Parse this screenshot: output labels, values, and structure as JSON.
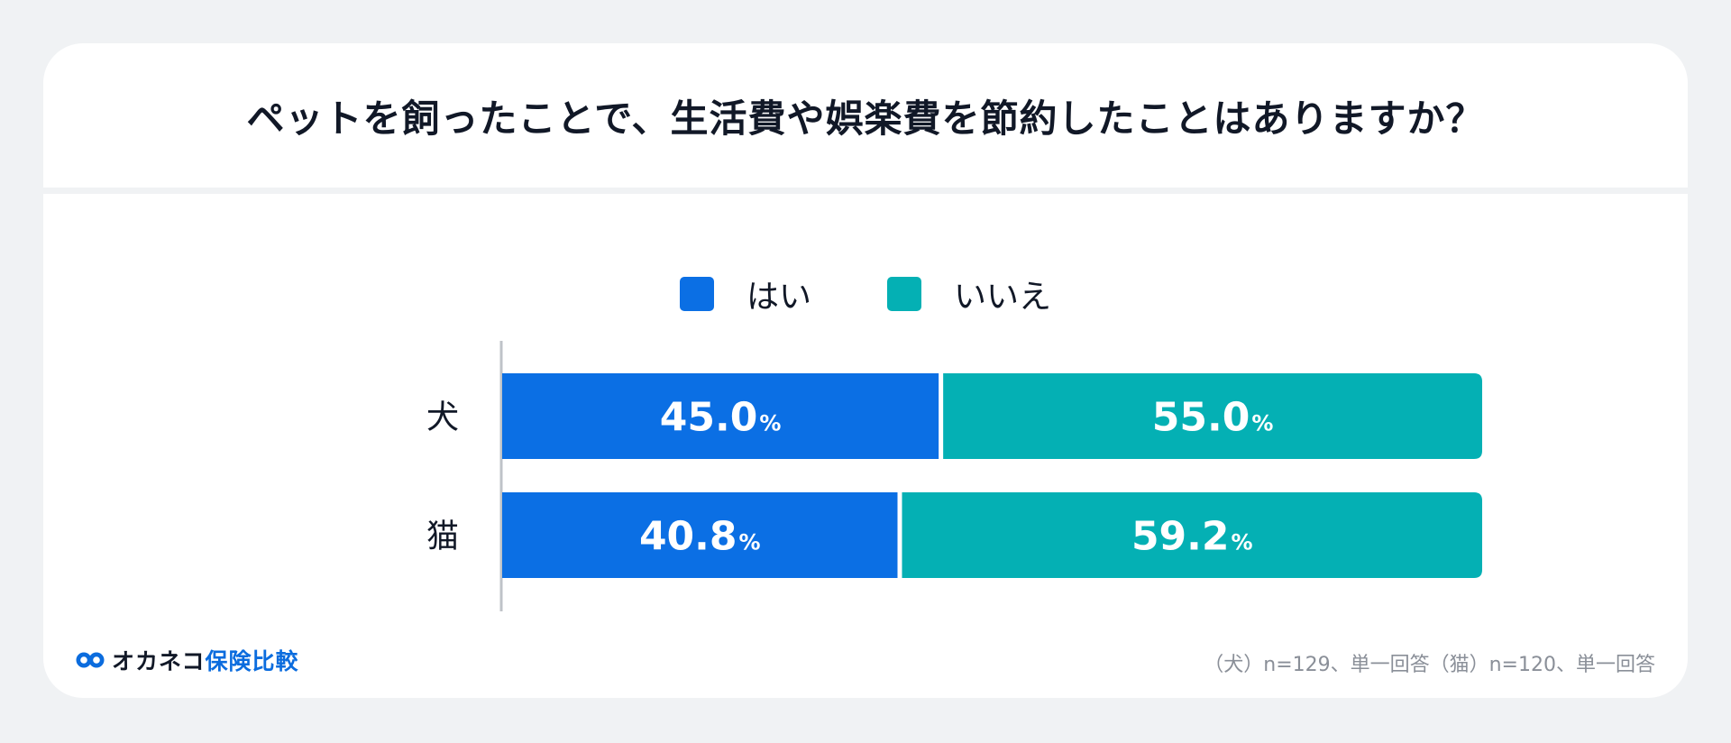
{
  "title": "ペットを飼ったことで、生活費や娯楽費を節約したことはありますか？",
  "colors": {
    "yes": "#0b6fe4",
    "no": "#04b0b4",
    "text": "#111827",
    "axis": "#bfc3c8"
  },
  "chart_data": {
    "type": "bar",
    "orientation": "horizontal",
    "stacked": true,
    "categories": [
      "犬",
      "猫"
    ],
    "series": [
      {
        "name": "はい",
        "values": [
          45.0,
          40.8
        ]
      },
      {
        "name": "いいえ",
        "values": [
          55.0,
          59.2
        ]
      }
    ],
    "data_labels": [
      [
        "45.0",
        "40.8"
      ],
      [
        "55.0",
        "59.2"
      ]
    ],
    "unit": "%",
    "xlim": [
      0,
      100
    ],
    "legend_position": "top"
  },
  "footer": {
    "logo_text": "オカネコ",
    "logo_text_blue": "保険比較",
    "note": "（犬）n=129、単一回答（猫）n=120、単一回答"
  }
}
